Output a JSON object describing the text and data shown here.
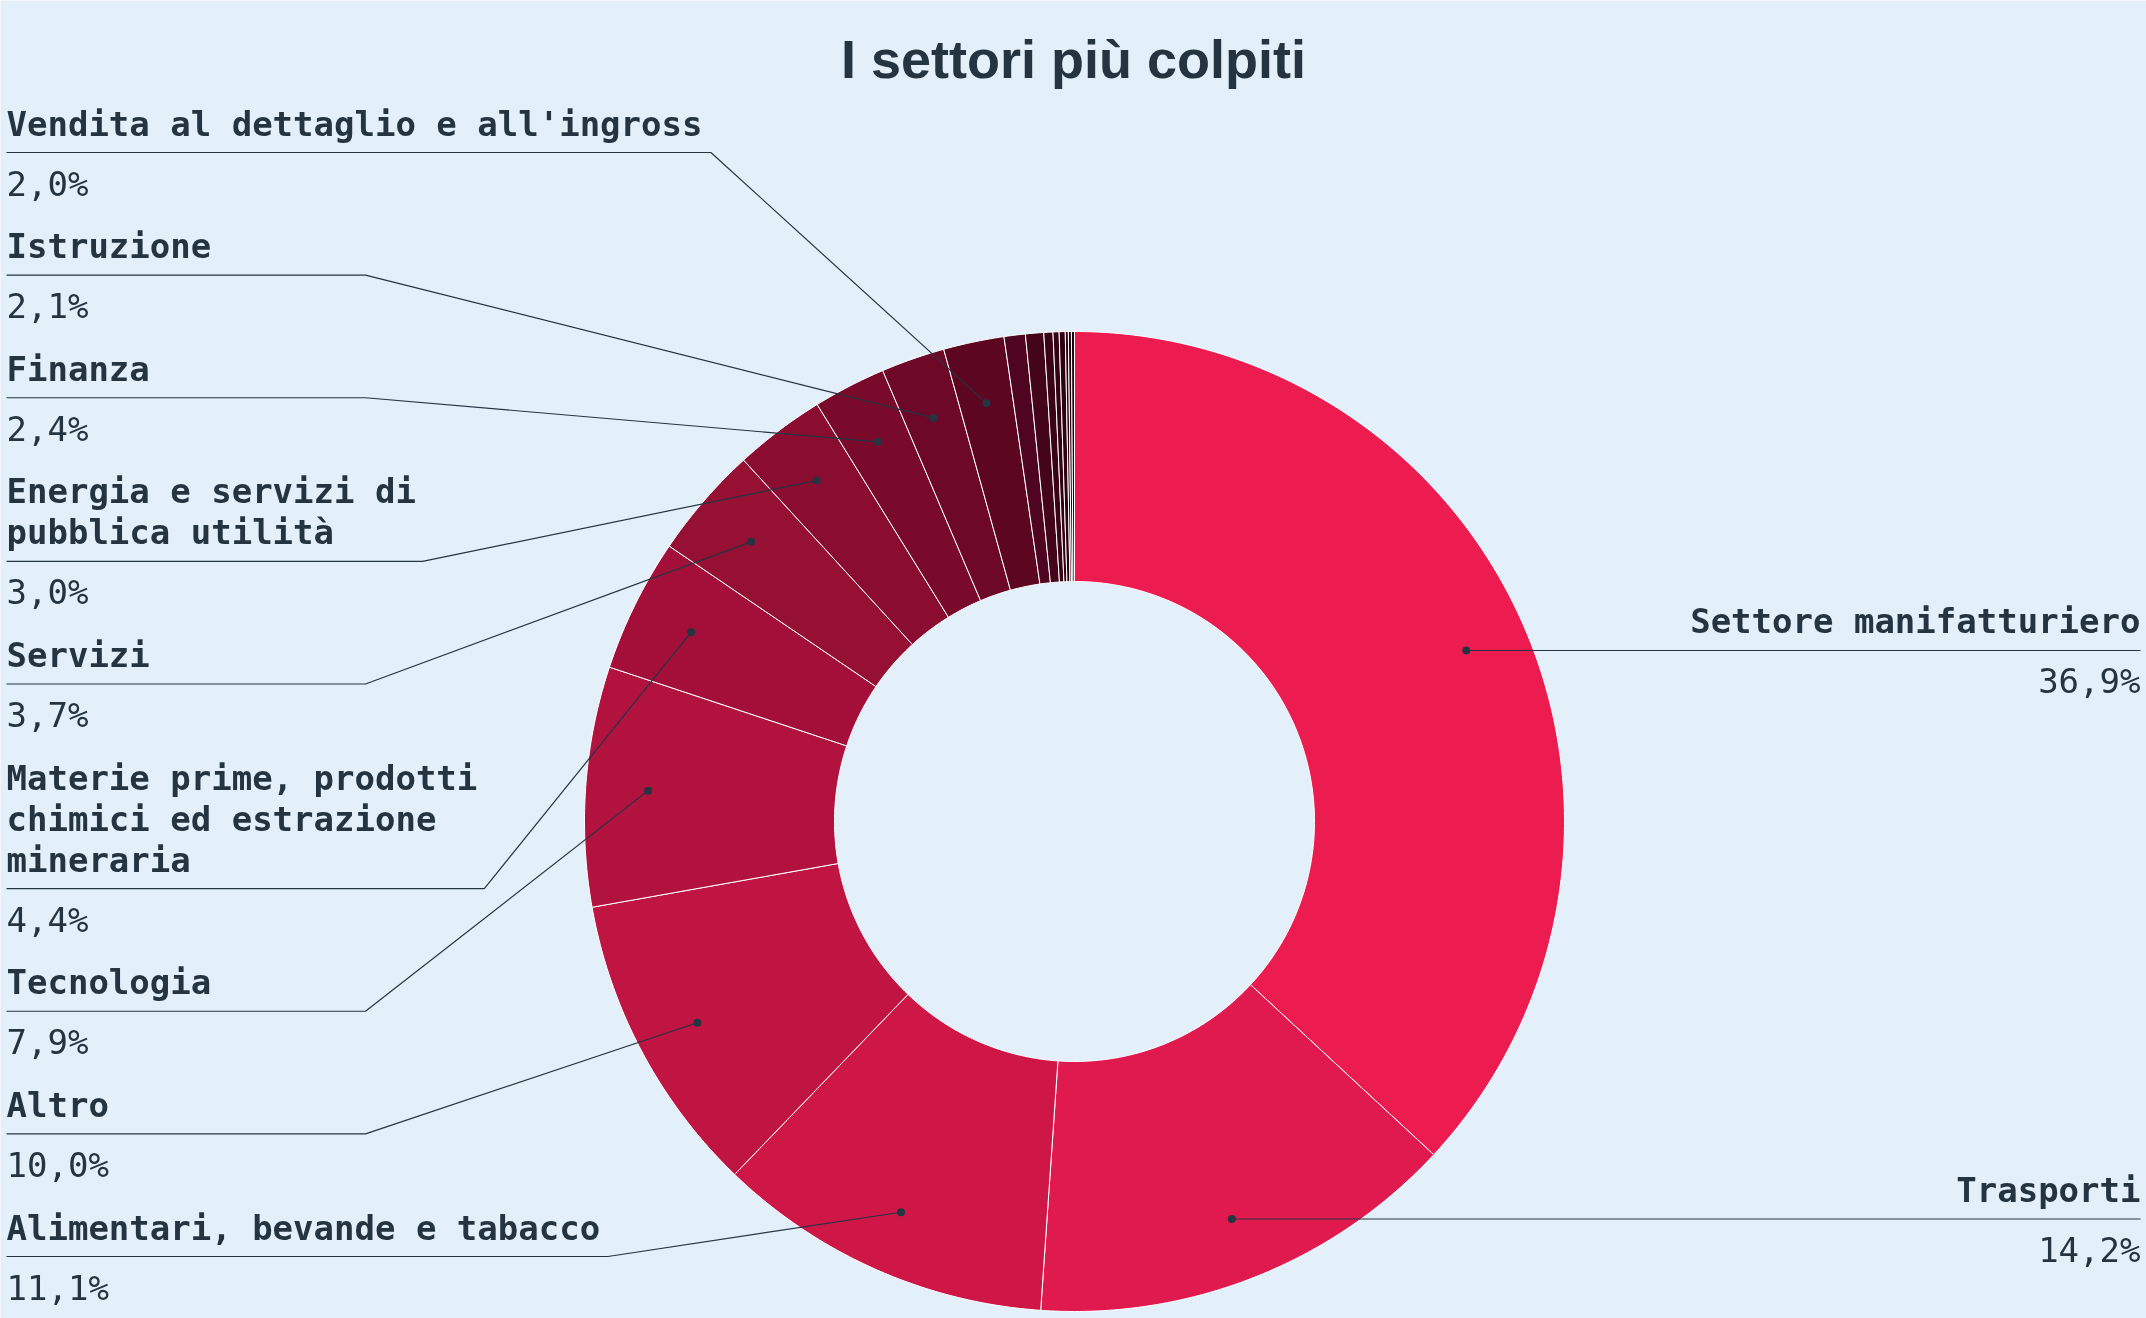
{
  "chart_data": {
    "type": "donut",
    "title": "I settori più colpiti",
    "categories": [
      "Settore manifatturiero",
      "Trasporti",
      "Alimentari, bevande e tabacco",
      "Altro",
      "Tecnologia",
      "Materie prime, prodotti chimici ed estrazione mineraria",
      "Servizi",
      "Energia e servizi di pubblica utilità",
      "Finanza",
      "Istruzione",
      "Vendita al dettaglio e all'ingross",
      null,
      null,
      null,
      null,
      null,
      null,
      null,
      null
    ],
    "values": [
      36.9,
      14.2,
      11.1,
      10.0,
      7.9,
      4.4,
      3.7,
      3.0,
      2.4,
      2.1,
      2.0,
      0.7,
      0.6,
      0.3,
      0.2,
      0.2,
      0.1,
      0.1,
      0.1
    ],
    "colors": [
      "#ec1c50",
      "#e01a4f",
      "#cf1747",
      "#c01442",
      "#b2123e",
      "#a30f38",
      "#961033",
      "#8a0c30",
      "#7a0a2b",
      "#6d0828",
      "#5c0622",
      "#4f0520",
      "#440419",
      "#3a0316",
      "#330213",
      "#2e0211",
      "#2a0110",
      "#26010e",
      "#22010c"
    ],
    "value_labels": [
      "36,9%",
      "14,2%",
      "11,1%",
      "10,0%",
      "7,9%",
      "4,4%",
      "3,7%",
      "3,0%",
      "2,4%",
      "2,1%",
      "2,0%",
      null,
      null,
      null,
      null,
      null,
      null,
      null,
      null
    ]
  }
}
